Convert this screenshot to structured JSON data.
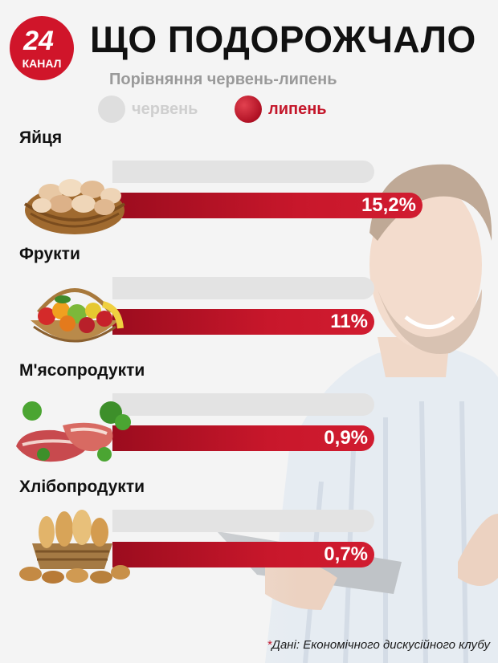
{
  "brand": {
    "logo_number": "24",
    "logo_text": "КАНАЛ"
  },
  "title": "ЩО ПОДОРОЖЧАЛО",
  "subtitle": "Порівняння червень-липень",
  "legend": {
    "june": "червень",
    "july": "липень"
  },
  "colors": {
    "accent": "#c4162a",
    "june_bar": "#e3e3e3",
    "july_bar": "#c8172b"
  },
  "chart_data": {
    "type": "bar",
    "orientation": "horizontal",
    "title": "ЩО ПОДОРОЖЧАЛО",
    "subtitle": "Порівняння червень-липень",
    "legend": [
      "червень",
      "липень"
    ],
    "legend_placement": "top",
    "grid": false,
    "categories": [
      "Яйця",
      "Фрукти",
      "М'ясопродукти",
      "Хлібопродукти"
    ],
    "series": [
      {
        "name": "червень",
        "values": [
          null,
          null,
          null,
          null
        ]
      },
      {
        "name": "липень",
        "values": [
          15.2,
          11,
          0.9,
          0.7
        ],
        "labels": [
          "15,2%",
          "11%",
          "0,9%",
          "0,7%"
        ]
      }
    ],
    "unit": "%"
  },
  "items": [
    {
      "label": "Яйця",
      "value_label": "15,2%",
      "icon": "egg-basket-icon"
    },
    {
      "label": "Фрукти",
      "value_label": "11%",
      "icon": "fruit-basket-icon"
    },
    {
      "label": "М'ясопродукти",
      "value_label": "0,9%",
      "icon": "meat-icon"
    },
    {
      "label": "Хлібопродукти",
      "value_label": "0,7%",
      "icon": "bread-basket-icon"
    }
  ],
  "source": {
    "star": "*",
    "text": "Дані: Економічного дискусійного клубу"
  }
}
